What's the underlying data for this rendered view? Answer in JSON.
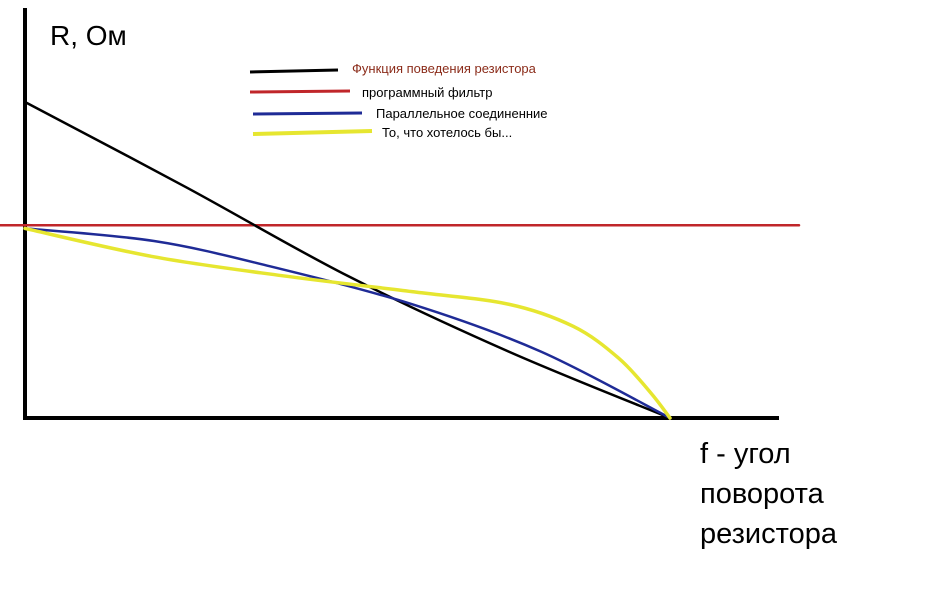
{
  "chart_data": {
    "type": "line",
    "title": "",
    "ylabel": "R, Ом",
    "xlabel_lines": [
      "f - угол",
      "поворота",
      "резистора"
    ],
    "grid": false,
    "legend_placement": "top",
    "series": [
      {
        "name": "Функция поведения резистора",
        "color": "#000000",
        "label_color": "#8b2c1a",
        "points": [
          [
            0,
            100
          ],
          [
            25,
            73
          ],
          [
            50,
            45
          ],
          [
            75,
            21
          ],
          [
            100,
            0
          ]
        ]
      },
      {
        "name": "программный фильтр",
        "color": "#c0262a",
        "label_color": "#000000",
        "points": [
          [
            -4,
            61
          ],
          [
            120,
            61
          ]
        ]
      },
      {
        "name": "Параллельное соединенние",
        "color": "#1f2b96",
        "label_color": "#000000",
        "points": [
          [
            0,
            60
          ],
          [
            20,
            56
          ],
          [
            38,
            48
          ],
          [
            60,
            36
          ],
          [
            80,
            21
          ],
          [
            100,
            0
          ]
        ]
      },
      {
        "name": "То, что хотелось бы...",
        "color": "#e6e630",
        "label_color": "#000000",
        "points": [
          [
            0,
            60
          ],
          [
            20,
            51
          ],
          [
            40,
            45
          ],
          [
            60,
            40
          ],
          [
            75,
            36
          ],
          [
            85,
            29
          ],
          [
            92,
            19
          ],
          [
            97,
            8
          ],
          [
            100,
            0
          ]
        ]
      }
    ]
  }
}
